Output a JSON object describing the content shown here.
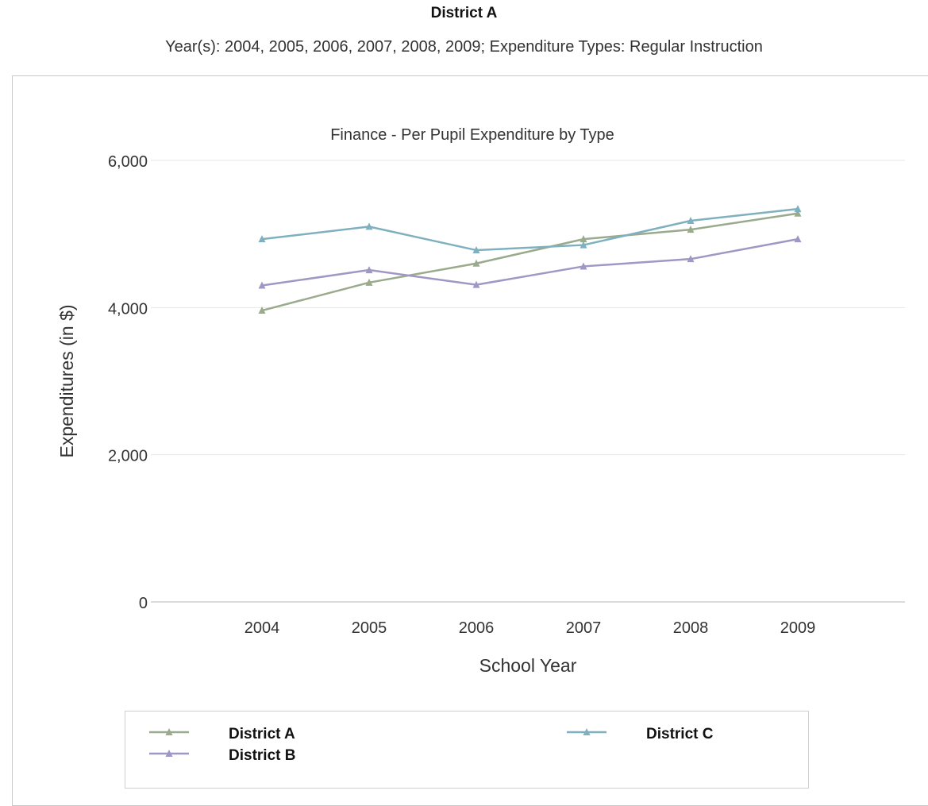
{
  "header": {
    "title": "District A",
    "subtitle": "Year(s): 2004, 2005, 2006, 2007, 2008, 2009; Expenditure Types: Regular Instruction"
  },
  "chart_data": {
    "type": "line",
    "title": "Finance - Per Pupil Expenditure by Type",
    "xlabel": "School Year",
    "ylabel": "Expenditures (in $)",
    "categories": [
      "2004",
      "2005",
      "2006",
      "2007",
      "2008",
      "2009"
    ],
    "ylim": [
      0,
      6000
    ],
    "yticks": [
      0,
      2000,
      4000,
      6000
    ],
    "ytick_labels": [
      "0",
      "2,000",
      "4,000",
      "6,000"
    ],
    "grid": true,
    "legend_position": "bottom",
    "series": [
      {
        "name": "District A",
        "color": "#9aaa8c",
        "values": [
          3960,
          4340,
          4600,
          4930,
          5060,
          5280
        ]
      },
      {
        "name": "District B",
        "color": "#a097c4",
        "values": [
          4300,
          4510,
          4310,
          4560,
          4660,
          4930
        ]
      },
      {
        "name": "District C",
        "color": "#7fb0bf",
        "values": [
          4930,
          5100,
          4780,
          4850,
          5180,
          5340
        ]
      }
    ]
  }
}
